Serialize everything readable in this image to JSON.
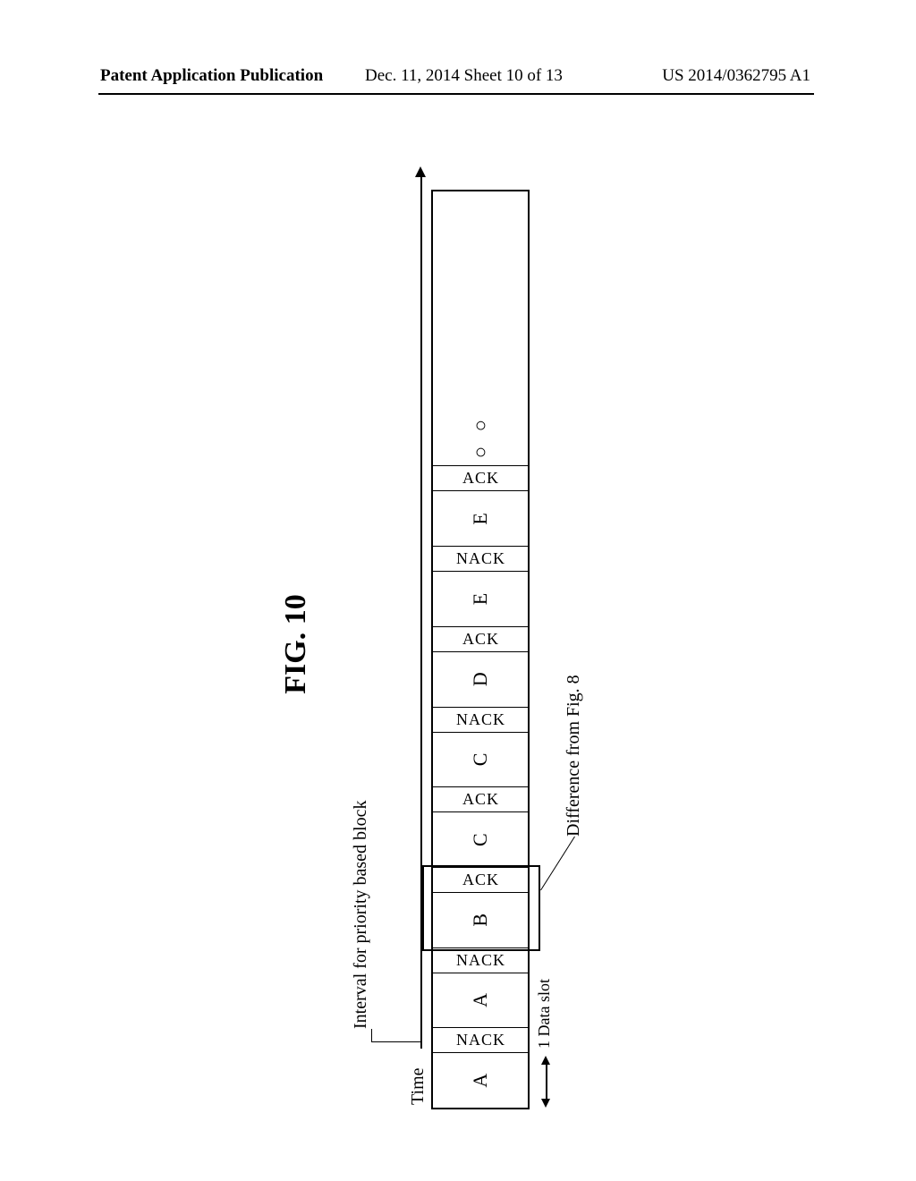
{
  "header": {
    "left": "Patent Application Publication",
    "mid": "Dec. 11, 2014  Sheet 10 of 13",
    "right": "US 2014/0362795 A1"
  },
  "figure": {
    "title": "FIG. 10",
    "interval_label": "Interval for priority based block",
    "time_label": "Time",
    "data_slot_label": "1 Data slot",
    "difference_label": "Difference from Fig. 8",
    "slots": [
      {
        "type": "data",
        "label": "A",
        "ack": "NACK"
      },
      {
        "type": "data",
        "label": "A",
        "ack": "NACK"
      },
      {
        "type": "data",
        "label": "B",
        "ack": "ACK"
      },
      {
        "type": "data",
        "label": "C",
        "ack": "ACK"
      },
      {
        "type": "data",
        "label": "C",
        "ack": "NACK"
      },
      {
        "type": "data",
        "label": "D",
        "ack": "ACK"
      },
      {
        "type": "data",
        "label": "E",
        "ack": "NACK"
      },
      {
        "type": "data",
        "label": "E",
        "ack": "ACK"
      },
      {
        "type": "pending",
        "label": "○"
      },
      {
        "type": "pending",
        "label": "○"
      }
    ],
    "highlight_start_slot": 2,
    "highlight_end_slot": 2,
    "colors": {
      "line": "#000000",
      "background": "#ffffff"
    }
  }
}
